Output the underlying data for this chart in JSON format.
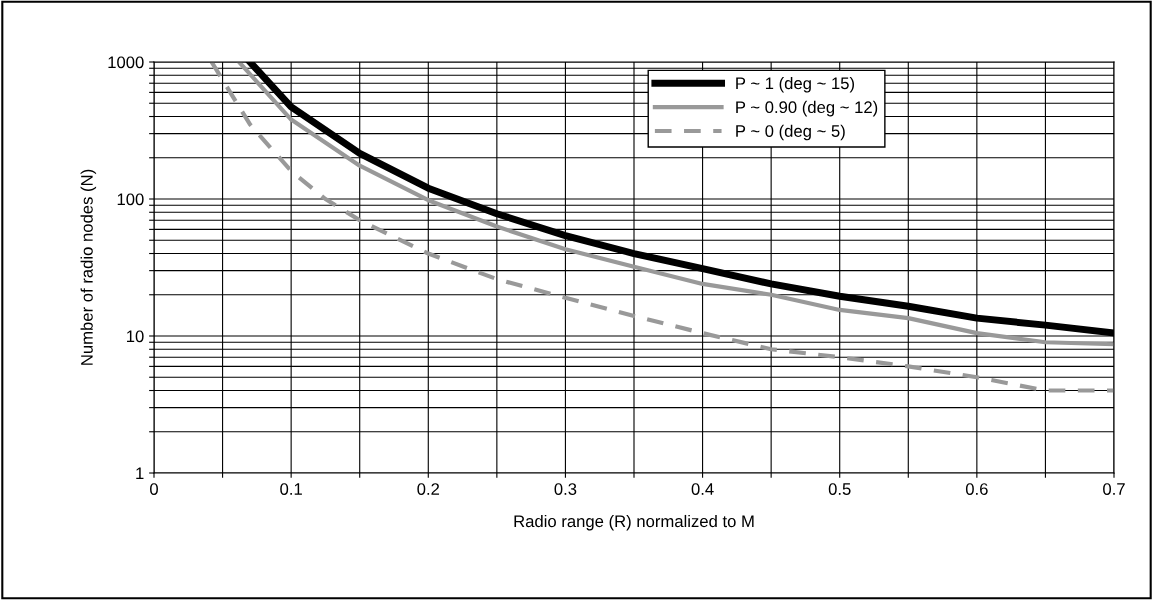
{
  "chart_data": {
    "type": "line",
    "xlabel": "Radio range (R) normalized to M",
    "ylabel": "Number of radio nodes (N)",
    "log": "y",
    "grid": true,
    "legend": "top right",
    "marker": "none",
    "xlim": [
      0,
      0.7
    ],
    "ylim": [
      1,
      1000
    ],
    "xticks": [
      0,
      {
        "value": 0.05,
        "label": null
      },
      0.1,
      {
        "value": 0.15,
        "label": null
      },
      0.2,
      {
        "value": 0.25,
        "label": null
      },
      0.3,
      {
        "value": 0.35,
        "label": null
      },
      0.4,
      {
        "value": 0.45,
        "label": null
      },
      0.5,
      {
        "value": 0.55,
        "label": null
      },
      0.6,
      {
        "value": 0.65,
        "label": null
      },
      0.7
    ],
    "yticks": [
      1,
      {
        "value": 2,
        "label": null
      },
      {
        "value": 3,
        "label": null
      },
      {
        "value": 4,
        "label": null
      },
      {
        "value": 5,
        "label": null
      },
      {
        "value": 6,
        "label": null
      },
      {
        "value": 7,
        "label": null
      },
      {
        "value": 8,
        "label": null
      },
      {
        "value": 9,
        "label": null
      },
      10,
      {
        "value": 20,
        "label": null
      },
      {
        "value": 30,
        "label": null
      },
      {
        "value": 40,
        "label": null
      },
      {
        "value": 50,
        "label": null
      },
      {
        "value": 60,
        "label": null
      },
      {
        "value": 70,
        "label": null
      },
      {
        "value": 80,
        "label": null
      },
      {
        "value": 90,
        "label": null
      },
      100,
      {
        "value": 200,
        "label": null
      },
      {
        "value": 300,
        "label": null
      },
      {
        "value": 400,
        "label": null
      },
      {
        "value": 500,
        "label": null
      },
      {
        "value": 600,
        "label": null
      },
      {
        "value": 700,
        "label": null
      },
      {
        "value": 800,
        "label": null
      },
      {
        "value": 900,
        "label": null
      },
      1000
    ],
    "series": [
      {
        "name": "P ~ 1 (deg ~ 15)",
        "color": "#000000",
        "line_style": "solid",
        "x": [
          0.07,
          0.1,
          0.15,
          0.2,
          0.25,
          0.3,
          0.35,
          0.4,
          0.45,
          0.5,
          0.55,
          0.6,
          0.65,
          0.7
        ],
        "values": [
          1000,
          470,
          215,
          120,
          78,
          54,
          40,
          31,
          24,
          19.5,
          16.5,
          13.5,
          12,
          10.5
        ]
      },
      {
        "name": "P ~ 0.90 (deg ~ 12)",
        "color": "#999999",
        "line_style": "solid",
        "x": [
          0.062,
          0.1,
          0.15,
          0.2,
          0.25,
          0.3,
          0.35,
          0.4,
          0.45,
          0.5,
          0.55,
          0.6,
          0.65,
          0.7
        ],
        "values": [
          1000,
          380,
          175,
          98,
          63,
          43,
          32,
          24,
          20,
          15.5,
          13.5,
          10.5,
          9,
          8.7
        ]
      },
      {
        "name": "P ~ 0 (deg ~ 5)",
        "color": "#999999",
        "line_style": "dashed",
        "x": [
          0.042,
          0.07,
          0.1,
          0.125,
          0.15,
          0.2,
          0.25,
          0.3,
          0.35,
          0.4,
          0.45,
          0.5,
          0.55,
          0.6,
          0.65,
          0.7
        ],
        "values": [
          1000,
          350,
          160,
          100,
          70,
          40,
          26,
          19,
          14,
          10.5,
          8,
          7,
          6,
          5,
          4,
          4
        ]
      }
    ]
  }
}
